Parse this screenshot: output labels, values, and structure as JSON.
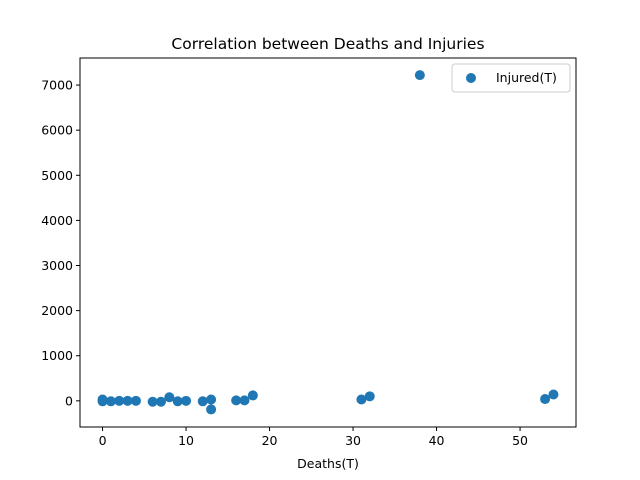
{
  "chart_data": {
    "type": "scatter",
    "title": "Correlation between Deaths and Injuries",
    "xlabel": "Deaths(T)",
    "ylabel": "",
    "xlim": [
      -2.7,
      56.7
    ],
    "ylim": [
      -580,
      7600
    ],
    "xticks": [
      0,
      10,
      20,
      30,
      40,
      50
    ],
    "yticks": [
      0,
      1000,
      2000,
      3000,
      4000,
      5000,
      6000,
      7000
    ],
    "grid": false,
    "legend_position": "top-right",
    "series": [
      {
        "name": "Injured(T)",
        "color": "#1f77b4",
        "points": [
          {
            "x": 0,
            "y": 30
          },
          {
            "x": 0,
            "y": -10
          },
          {
            "x": 1,
            "y": -10
          },
          {
            "x": 2,
            "y": 0
          },
          {
            "x": 3,
            "y": 0
          },
          {
            "x": 4,
            "y": 0
          },
          {
            "x": 6,
            "y": -20
          },
          {
            "x": 7,
            "y": -20
          },
          {
            "x": 8,
            "y": 80
          },
          {
            "x": 9,
            "y": -10
          },
          {
            "x": 10,
            "y": 0
          },
          {
            "x": 12,
            "y": -10
          },
          {
            "x": 13,
            "y": 30
          },
          {
            "x": 13,
            "y": -190
          },
          {
            "x": 16,
            "y": 10
          },
          {
            "x": 17,
            "y": 10
          },
          {
            "x": 18,
            "y": 120
          },
          {
            "x": 31,
            "y": 30
          },
          {
            "x": 32,
            "y": 100
          },
          {
            "x": 38,
            "y": 7220
          },
          {
            "x": 53,
            "y": 40
          },
          {
            "x": 54,
            "y": 140
          }
        ]
      }
    ]
  }
}
